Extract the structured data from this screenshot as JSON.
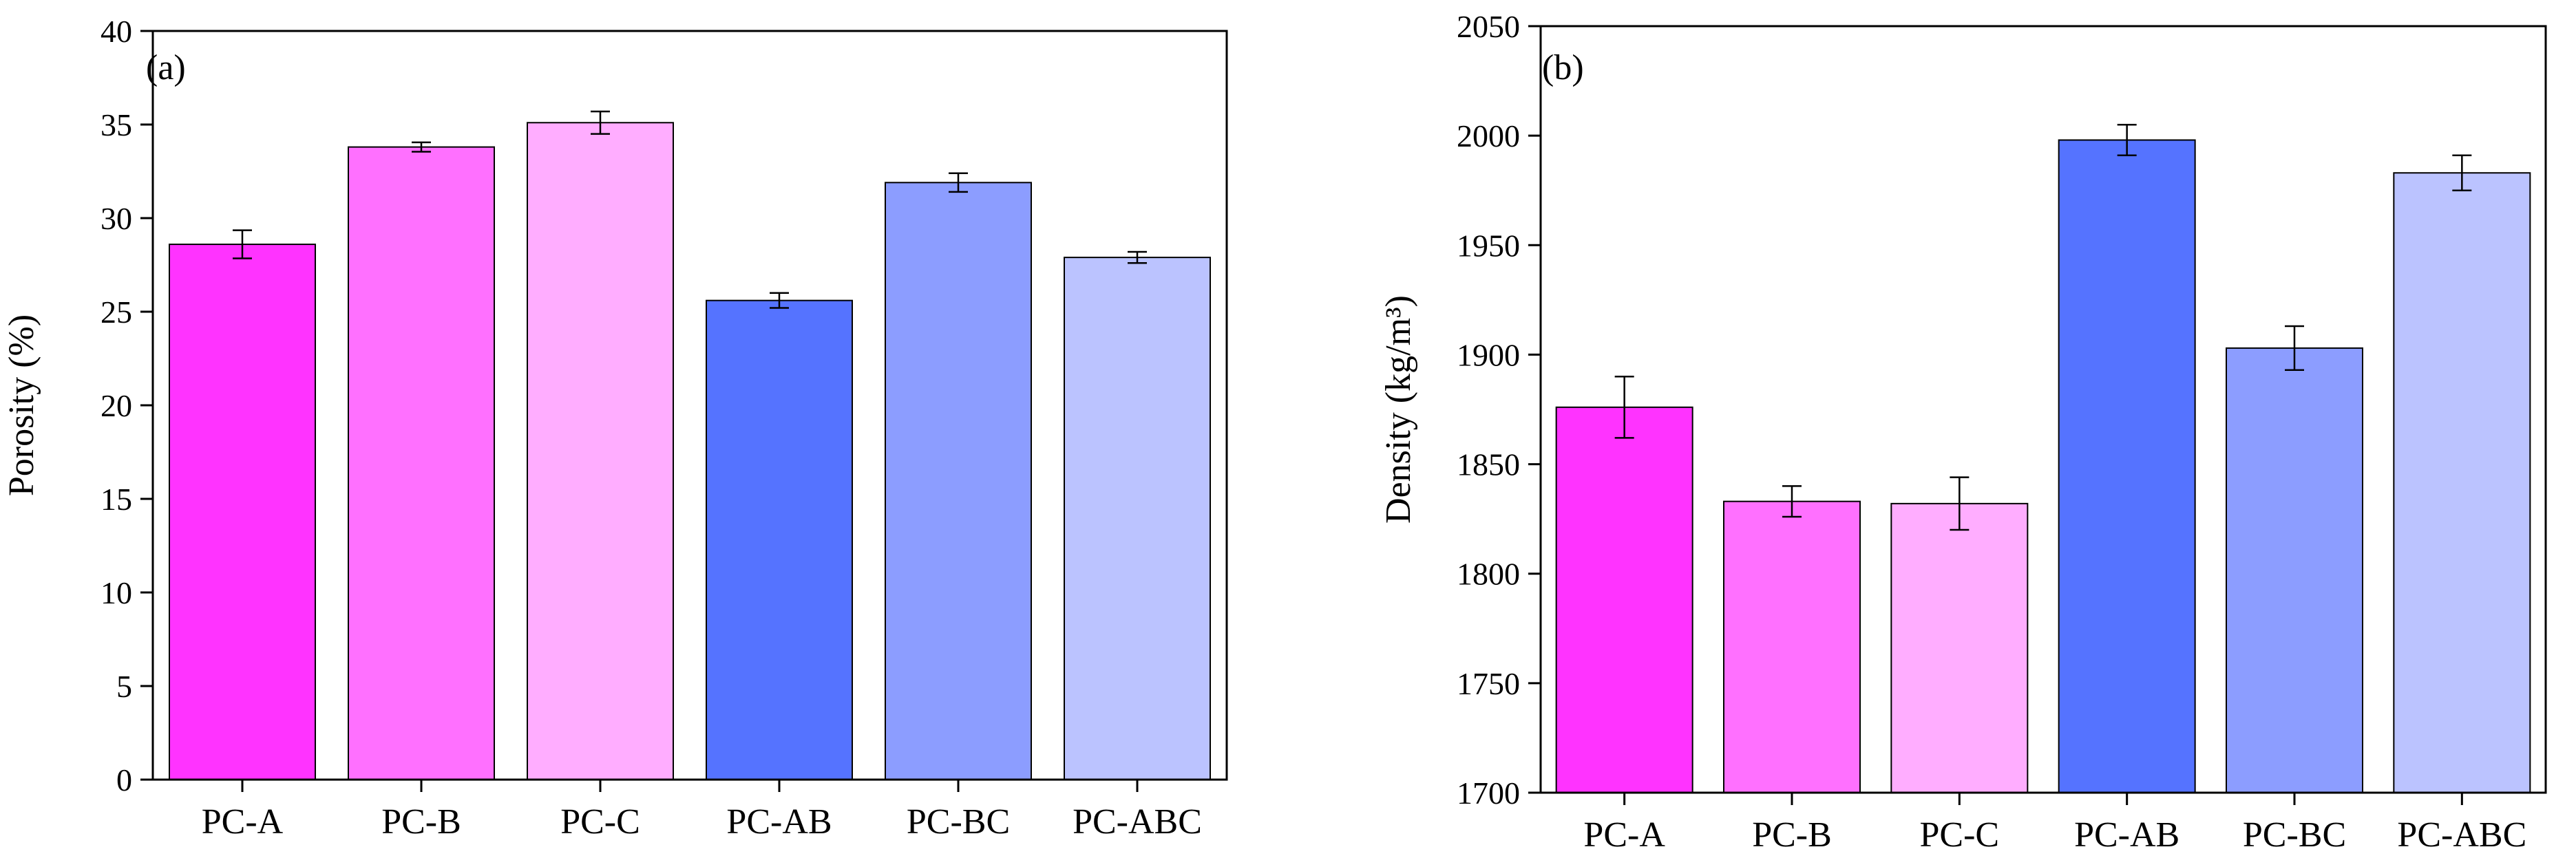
{
  "chart_data": [
    {
      "type": "bar",
      "panel_label": "(a)",
      "ylabel": "Porosity (%)",
      "xlabel": "",
      "ylim": [
        0,
        40
      ],
      "y_ticks": [
        "0",
        "5",
        "10",
        "15",
        "20",
        "25",
        "30",
        "35",
        "40"
      ],
      "grid": false,
      "categories": [
        "PC-A",
        "PC-B",
        "PC-C",
        "PC-AB",
        "PC-BC",
        "PC-ABC"
      ],
      "values": [
        28.6,
        33.8,
        35.1,
        25.6,
        31.9,
        27.9
      ],
      "errors": [
        0.75,
        0.25,
        0.6,
        0.4,
        0.5,
        0.3
      ],
      "colors": [
        "#ff33ff",
        "#ff70ff",
        "#ffadff",
        "#5573ff",
        "#8c9dff",
        "#bbc3ff"
      ]
    },
    {
      "type": "bar",
      "panel_label": "(b)",
      "ylabel": "Density (kg/m³)",
      "xlabel": "",
      "ylim": [
        1700,
        2050
      ],
      "y_ticks": [
        "1700",
        "1750",
        "1800",
        "1850",
        "1900",
        "1950",
        "2000",
        "2050"
      ],
      "grid": false,
      "categories": [
        "PC-A",
        "PC-B",
        "PC-C",
        "PC-AB",
        "PC-BC",
        "PC-ABC"
      ],
      "values": [
        1876,
        1833,
        1832,
        1998,
        1903,
        1983
      ],
      "errors": [
        14,
        7,
        12,
        7,
        10,
        8
      ],
      "colors": [
        "#ff33ff",
        "#ff70ff",
        "#ffadff",
        "#5573ff",
        "#8c9dff",
        "#bbc3ff"
      ]
    }
  ]
}
